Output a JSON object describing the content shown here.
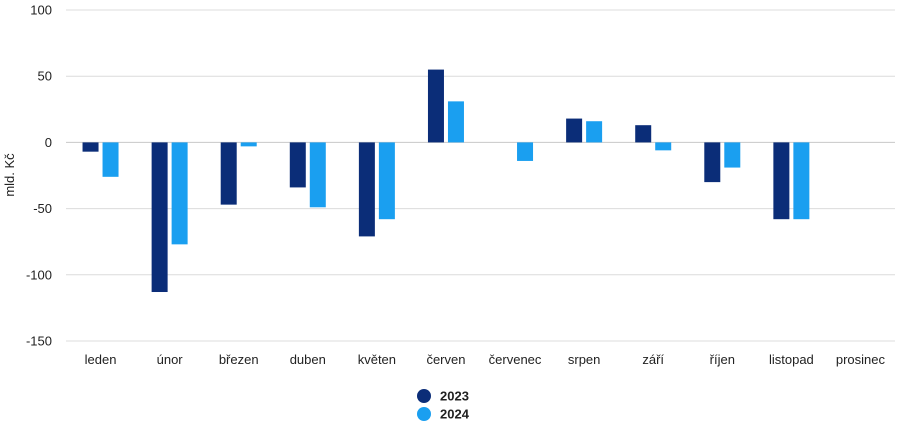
{
  "chart_data": {
    "type": "bar",
    "ylabel": "mld. Kč",
    "ylim": [
      -150,
      100
    ],
    "yticks": [
      100,
      50,
      0,
      -50,
      -100,
      -150
    ],
    "categories": [
      "leden",
      "únor",
      "březen",
      "duben",
      "květen",
      "červen",
      "červenec",
      "srpen",
      "září",
      "říjen",
      "listopad",
      "prosinec"
    ],
    "series": [
      {
        "name": "2023",
        "color": "#0b2d78",
        "values": [
          -7,
          -113,
          -47,
          -34,
          -71,
          55,
          null,
          18,
          13,
          -30,
          -58,
          null
        ]
      },
      {
        "name": "2024",
        "color": "#1a9ff0",
        "values": [
          -26,
          -77,
          -3,
          -49,
          -58,
          31,
          -14,
          16,
          -6,
          -19,
          -58,
          null
        ]
      }
    ],
    "grid": true,
    "legend_position": "bottom-center"
  }
}
